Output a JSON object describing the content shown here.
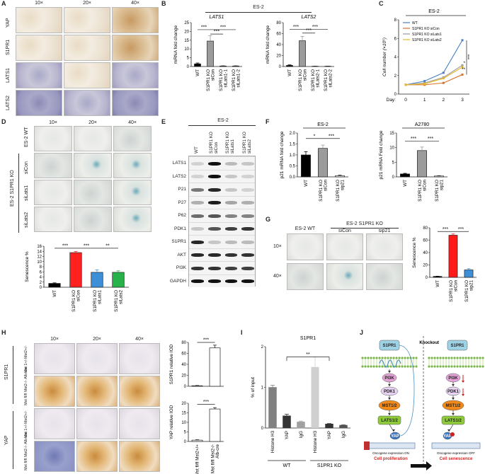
{
  "panels": {
    "A": {
      "label": "A",
      "columns": [
        "10×",
        "20×",
        "40×"
      ],
      "rows": [
        "YAP",
        "S1PR1",
        "LATS1",
        "LATS2"
      ]
    },
    "B": {
      "label": "B",
      "title": "ES-2",
      "chart_data": [
        {
          "type": "bar",
          "title": "LATS1",
          "ylabel": "mRNA fold change",
          "categories": [
            "WT",
            "S1PR1 KO siCon",
            "S1PR1 KO siLats1-1",
            "S1PR1 KO siLats1-2"
          ],
          "values": [
            1.5,
            14.5,
            0.3,
            0.3
          ],
          "errors": [
            0.5,
            3.0,
            0.1,
            0.1
          ],
          "ylim": [
            0,
            25
          ],
          "yticks": [
            "0",
            "5",
            "10",
            "15",
            "20",
            "25"
          ],
          "colors": [
            "#000000",
            "#9b9b9b",
            "#ffffff",
            "#ffffff"
          ],
          "significance": [
            "***",
            "***",
            "***"
          ]
        },
        {
          "type": "bar",
          "title": "LATS2",
          "ylabel": "mRNA fold change",
          "categories": [
            "WT",
            "S1PR1 KO siCon",
            "S1PR1 KO siLats2-1",
            "S1PR1 KO siLats2-2"
          ],
          "values": [
            2,
            47,
            0.5,
            0.5
          ],
          "errors": [
            1,
            8,
            0.2,
            0.2
          ],
          "ylim": [
            0,
            80
          ],
          "yticks": [
            "0",
            "20",
            "40",
            "60",
            "80"
          ],
          "colors": [
            "#000000",
            "#9b9b9b",
            "#ffffff",
            "#ffffff"
          ],
          "significance": [
            "***",
            "***",
            "***"
          ]
        }
      ]
    },
    "C": {
      "label": "C",
      "chart_data": {
        "type": "line",
        "title": "ES-2",
        "ylabel": "Cell number (×10⁵)",
        "xlabel": "Day:",
        "x": [
          0,
          1,
          2,
          3
        ],
        "xticks": [
          "0",
          "1",
          "2",
          "3"
        ],
        "ylim": [
          0,
          8
        ],
        "yticks": [
          "0",
          "2",
          "4",
          "6",
          "8"
        ],
        "series": [
          {
            "name": "WT",
            "color": "#4a7fc1",
            "values": [
              1.0,
              1.4,
              2.3,
              5.8
            ]
          },
          {
            "name": "S1PR1 KO siCon",
            "color": "#d9732b",
            "values": [
              1.0,
              1.0,
              1.2,
              2.1
            ]
          },
          {
            "name": "S1PR1 KO siLats1",
            "color": "#9a9a9a",
            "values": [
              1.0,
              1.2,
              1.8,
              3.1
            ]
          },
          {
            "name": "S1PR1 KO siLats2",
            "color": "#e8b828",
            "values": [
              1.0,
              1.1,
              1.7,
              2.9
            ]
          }
        ],
        "significance": [
          "***",
          "*",
          "**"
        ]
      }
    },
    "D": {
      "label": "D",
      "columns": [
        "10×",
        "20×",
        "40×"
      ],
      "rows": [
        "ES-2 WT",
        "siCon",
        "siLats1",
        "siLats2"
      ],
      "group_label": "ES-2 S1PR1 KO",
      "chart_data": {
        "type": "bar",
        "ylabel": "Senescence %",
        "categories": [
          "WT",
          "S1PR1 KO siCon",
          "S1PR1 KO siLats1",
          "S1PR1 KO siLats2"
        ],
        "values": [
          1.5,
          13.5,
          5.8,
          5.8
        ],
        "errors": [
          0.2,
          0.4,
          1.0,
          0.6
        ],
        "ylim": [
          0,
          16
        ],
        "yticks": [
          "0",
          "2",
          "4",
          "6",
          "8",
          "10",
          "12",
          "14",
          "16"
        ],
        "colors": [
          "#000000",
          "#ff2020",
          "#3d8fd8",
          "#27b34a"
        ],
        "significance": [
          "***",
          "***",
          "**"
        ]
      }
    },
    "E": {
      "label": "E",
      "title": "ES-2",
      "lanes": [
        "WT",
        "S1PR1 KO siCon",
        "S1PR1 KO siLats1",
        "S1PR1 KO siLats2"
      ],
      "blots": [
        "LATS1",
        "LATS2",
        "P21",
        "P27",
        "P62",
        "PDK1",
        "S1PR1",
        "AKT",
        "PI3K",
        "GAPDH"
      ]
    },
    "F": {
      "label": "F",
      "chart_data": [
        {
          "type": "bar",
          "title": "ES-2",
          "ylabel": "p21 mRNA fold change",
          "categories": [
            "WT",
            "S1PR1 KO siCon",
            "S1PR1 KO sip21"
          ],
          "values": [
            1.0,
            1.3,
            0.05
          ],
          "errors": [
            0.15,
            0.15,
            0.03
          ],
          "ylim": [
            0,
            2
          ],
          "yticks": [
            "0.0",
            "0.5",
            "1.0",
            "1.5",
            "2.0"
          ],
          "colors": [
            "#000000",
            "#9b9b9b",
            "#ffffff"
          ],
          "significance": [
            "*",
            "***"
          ]
        },
        {
          "type": "bar",
          "title": "A2780",
          "ylabel": "p21 mRNA Fold change",
          "categories": [
            "WT",
            "S1PR1 KO siCon",
            "S1PR1 KO sip21"
          ],
          "values": [
            1.0,
            9.0,
            0.3
          ],
          "errors": [
            0.2,
            1.2,
            0.1
          ],
          "ylim": [
            0,
            15
          ],
          "yticks": [
            "0",
            "5",
            "10",
            "15"
          ],
          "colors": [
            "#000000",
            "#9b9b9b",
            "#ffffff"
          ],
          "significance": [
            "***",
            "***"
          ]
        }
      ]
    },
    "G": {
      "label": "G",
      "columns": [
        "ES-2 WT",
        "siCon",
        "sip21"
      ],
      "group_label": "ES-2 S1PR1 KO",
      "rows": [
        "10×",
        "40×"
      ],
      "chart_data": {
        "type": "bar",
        "ylabel": "Senescence %",
        "categories": [
          "WT",
          "S1PR1 KO siCon",
          "S1PR1 KO sip21"
        ],
        "values": [
          1.5,
          68,
          12
        ],
        "errors": [
          0.3,
          2,
          2
        ],
        "ylim": [
          0,
          80
        ],
        "yticks": [
          "0",
          "20",
          "40",
          "60",
          "80"
        ],
        "colors": [
          "#000000",
          "#ff1a1a",
          "#3d8fd8"
        ],
        "significance": [
          "***",
          "***"
        ]
      }
    },
    "H": {
      "label": "H",
      "columns": [
        "10×",
        "20×",
        "40×"
      ],
      "groups": [
        "S1PR1",
        "YAP"
      ],
      "genotypes": [
        "Mst 1+/-Mst2+/-",
        "Mst fl/fl Mst2-/- Alb-cre"
      ],
      "chart_data": [
        {
          "type": "bar",
          "ylabel": "S1PR1 relative IOD",
          "categories": [
            "Mst fl/fl Mst2+/+",
            "Mst fl/fl Mst2-/- Alb-cre"
          ],
          "values": [
            1,
            70
          ],
          "errors": [
            0.5,
            5
          ],
          "ylim": [
            0,
            80
          ],
          "yticks": [
            "0",
            "20",
            "40",
            "60",
            "80"
          ],
          "significance": [
            "***"
          ]
        },
        {
          "type": "bar",
          "ylabel": "YAP relative IOD",
          "categories": [
            "Mst fl/fl Mst2+/+",
            "Mst fl/fl Mst2-/- Alb-cre"
          ],
          "values": [
            0.7,
            17
          ],
          "errors": [
            0.2,
            0.7
          ],
          "ylim": [
            0,
            20
          ],
          "yticks": [
            "0",
            "5",
            "10",
            "15",
            "20"
          ],
          "significance": [
            "***"
          ]
        }
      ]
    },
    "I": {
      "label": "I",
      "chart_data": {
        "type": "bar",
        "title": "S1PR1",
        "ylabel": "% of input",
        "categories": [
          "Histone H3",
          "YAP",
          "IgG",
          "Histone H3",
          "YAP",
          "IgG"
        ],
        "groups": [
          "WT",
          "S1PR1 KO"
        ],
        "values": [
          1.0,
          0.3,
          0.15,
          1.5,
          0.1,
          0.07
        ],
        "errors": [
          0.05,
          0.04,
          0.02,
          0.25,
          0.01,
          0.01
        ],
        "ylim": [
          0,
          2
        ],
        "yticks": [
          "0",
          "1",
          "2"
        ],
        "colors": [
          "#808080",
          "#333333",
          "#a0a0a0",
          "#d0d0d0",
          "#333333",
          "#555555"
        ],
        "significance": [
          "**"
        ]
      }
    },
    "J": {
      "label": "J",
      "left_nodes": [
        "S1PR1",
        "PI3K",
        "PDK1",
        "MST1/2",
        "LATS1/2",
        "YAP"
      ],
      "right_title": "Knockout",
      "right_nodes": [
        "S1PR1",
        "PI3K",
        "PDK1",
        "MST1/2",
        "LATS1/2",
        "YAP"
      ],
      "left_caption": "Oncogene expression ON",
      "left_result": "Cell proliferation",
      "right_caption": "Oncogene expression OFF",
      "right_result": "Cell senescence",
      "colors": {
        "s1pr1": "#9ed3e6",
        "pi3k": "#e4a3d6",
        "pdk1": "#e8d3f2",
        "mst": "#f18a1a",
        "lats": "#8fca3c",
        "yap": "#3c76c0",
        "result": "#e02020"
      }
    }
  }
}
